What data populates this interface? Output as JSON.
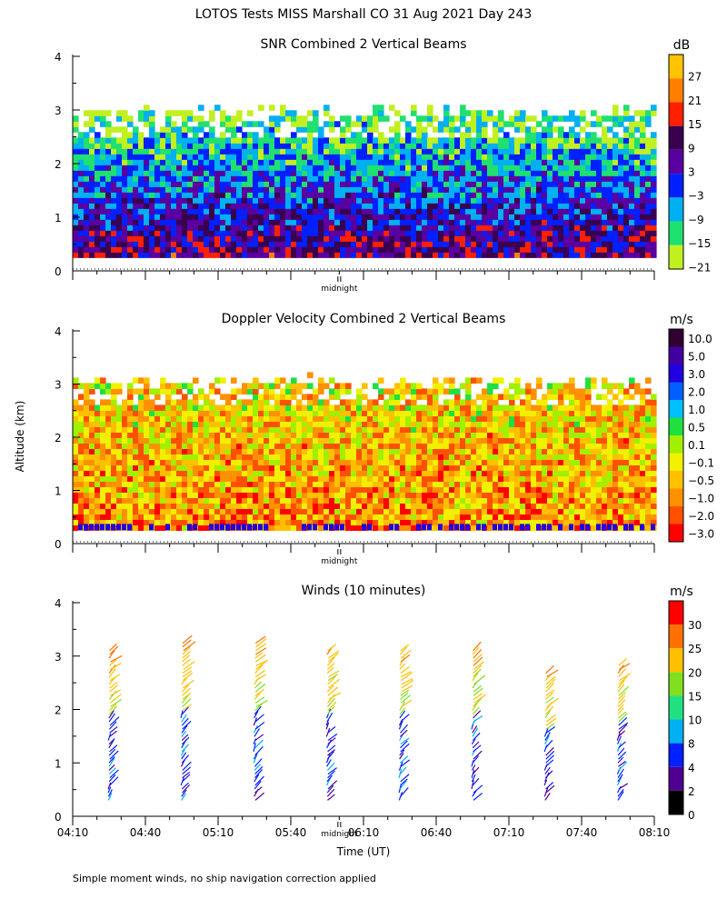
{
  "figure": {
    "title": "LOTOS Tests MISS Marshall CO  31 Aug 2021 Day 243",
    "footnote": "Simple moment winds, no ship navigation correction applied",
    "ylabel": "Altitude (km)",
    "xlabel": "Time (UT)",
    "midnight_label": "midnight"
  },
  "chart_data": [
    {
      "type": "heatmap",
      "title": "SNR Combined 2 Vertical Beams",
      "xlabel": "",
      "ylabel": "Altitude (km)",
      "ylim": [
        0,
        4
      ],
      "yticks": [
        "0",
        "1",
        "2",
        "3",
        "4"
      ],
      "xlim": [
        "04:10",
        "08:10"
      ],
      "unit": "dB",
      "colorbar": {
        "labels": [
          "27",
          "21",
          "15",
          "9",
          "3",
          "−3",
          "−9",
          "−15",
          "−21"
        ],
        "colors": [
          "#ffc400",
          "#ff8000",
          "#ff2000",
          "#3a0050",
          "#5a00a0",
          "#0020ff",
          "#00b0f0",
          "#20e070",
          "#c0f020"
        ]
      },
      "altitude_range_km": [
        0.25,
        3.0
      ]
    },
    {
      "type": "heatmap",
      "title": "Doppler Velocity Combined 2 Vertical Beams",
      "xlabel": "",
      "ylabel": "Altitude (km)",
      "ylim": [
        0,
        4
      ],
      "yticks": [
        "0",
        "1",
        "2",
        "3",
        "4"
      ],
      "xlim": [
        "04:10",
        "08:10"
      ],
      "unit": "m/s",
      "colorbar": {
        "labels": [
          "10.0",
          "5.0",
          "3.0",
          "2.0",
          "1.0",
          "0.5",
          "0.1",
          "−0.1",
          "−0.5",
          "−1.0",
          "−2.0",
          "−3.0"
        ],
        "colors": [
          "#300030",
          "#4000a0",
          "#2000e0",
          "#0060ff",
          "#00c0ff",
          "#20e040",
          "#a0f000",
          "#f0f000",
          "#ffc000",
          "#ff9000",
          "#ff5000",
          "#ff0000"
        ]
      },
      "altitude_range_km": [
        0.25,
        3.1
      ]
    },
    {
      "type": "scatter",
      "title": "Winds (10 minutes)",
      "xlabel": "Time (UT)",
      "ylabel": "Altitude (km)",
      "ylim": [
        0,
        4
      ],
      "yticks": [
        "0",
        "1",
        "2",
        "3",
        "4"
      ],
      "xlim": [
        "04:10",
        "08:10"
      ],
      "xticks": [
        "04:10",
        "04:40",
        "05:10",
        "05:40",
        "06:10",
        "06:40",
        "07:10",
        "07:40",
        "08:10"
      ],
      "unit": "m/s",
      "colorbar": {
        "labels": [
          "30",
          "25",
          "20",
          "15",
          "10",
          "8",
          "4",
          "2",
          "0"
        ],
        "colors": [
          "#ff0000",
          "#ff7000",
          "#ffc000",
          "#80e020",
          "#20e080",
          "#00b0f0",
          "#0020ff",
          "#500090",
          "#000000"
        ]
      },
      "profile_times": [
        "04:25",
        "04:55",
        "05:25",
        "05:55",
        "06:25",
        "06:55",
        "07:25",
        "07:55"
      ],
      "profile_top_km": [
        3.15,
        3.25,
        3.3,
        3.1,
        3.15,
        3.15,
        2.7,
        2.85
      ]
    }
  ]
}
